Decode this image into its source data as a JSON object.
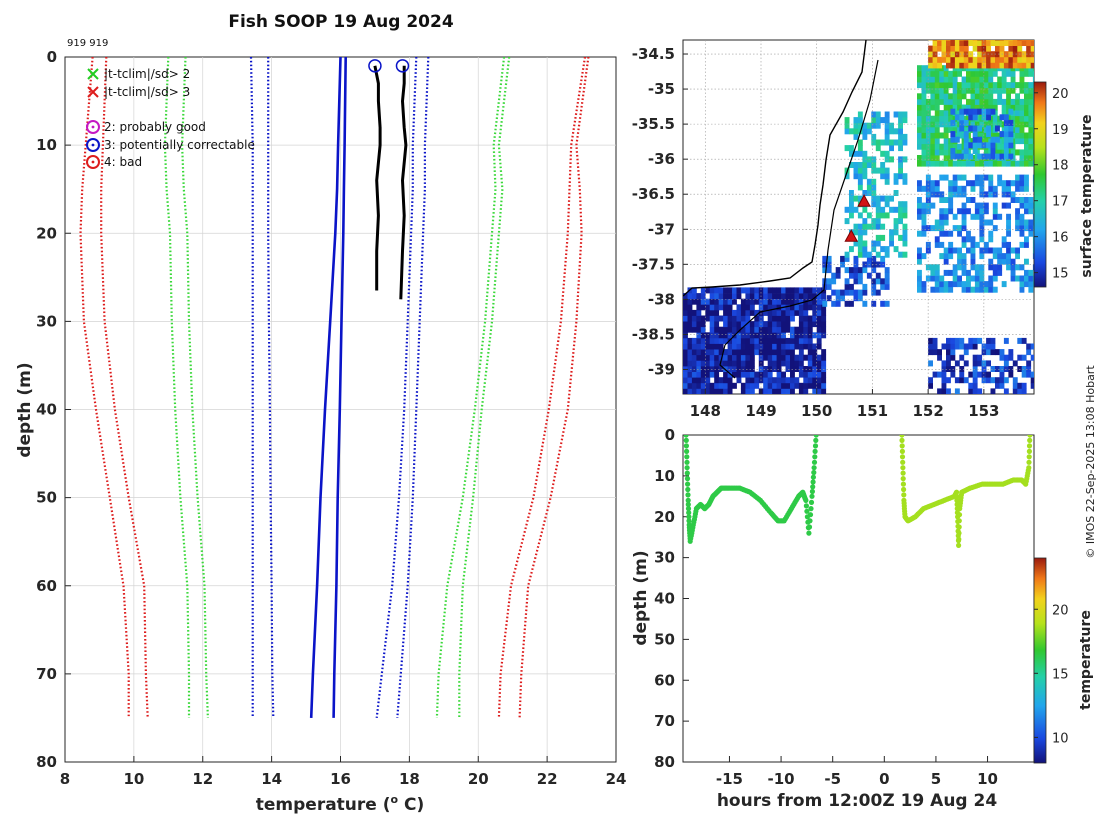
{
  "title": "Fish SOOP 19 Aug 2024",
  "ids_label": "919 919",
  "credit": "© IMOS 22-Sep-2025 13:08 Hobart",
  "colors": {
    "obs": "#000000",
    "clim": "#0a14c8",
    "sd2": "#3ad83a",
    "sd3": "#dd1c1c",
    "land_fill": "#ffffff",
    "marker": "#d21414",
    "qc_good": "#c419c4",
    "qc_corr": "#0a14c8",
    "qc_bad": "#dd1c1c"
  },
  "legend": [
    {
      "symbol": "x",
      "color": "#22cc22",
      "label": "|t-tclim|/sd> 2"
    },
    {
      "symbol": "x",
      "color": "#dd1c1c",
      "label": "|t-tclim|/sd> 3"
    },
    {
      "symbol": "o",
      "color": "#c419c4",
      "label": "2: probably good"
    },
    {
      "symbol": "o",
      "color": "#0a14c8",
      "label": "3: potentially correctable"
    },
    {
      "symbol": "o",
      "color": "#dd1c1c",
      "label": "4: bad"
    }
  ],
  "chart_data": [
    {
      "type": "line",
      "name": "profile",
      "xlabel": "temperature (o C)",
      "ylabel": "depth (m)",
      "xlim": [
        8,
        24
      ],
      "ylim": [
        80,
        0
      ],
      "y_reversed": true,
      "xticks": [
        8,
        10,
        12,
        14,
        16,
        18,
        20,
        22,
        24
      ],
      "yticks": [
        0,
        10,
        20,
        30,
        40,
        50,
        60,
        70,
        80
      ],
      "grid": true,
      "depths": [
        0,
        10,
        15,
        20,
        30,
        40,
        50,
        60,
        70,
        75
      ],
      "series": [
        {
          "name": "climatology 1",
          "style": "solid",
          "color": "#0a14c8",
          "values": [
            16.0,
            15.93,
            15.9,
            15.85,
            15.7,
            15.55,
            15.42,
            15.32,
            15.2,
            15.15
          ]
        },
        {
          "name": "climatology 2",
          "style": "solid",
          "color": "#0a14c8",
          "values": [
            16.15,
            16.12,
            16.1,
            16.08,
            16.03,
            15.98,
            15.92,
            15.88,
            15.82,
            15.8
          ]
        },
        {
          "name": "sd inner low",
          "style": "dotted",
          "color": "#0a14c8",
          "values": [
            13.4,
            13.45,
            13.45,
            13.45,
            13.45,
            13.45,
            13.45,
            13.45,
            13.45,
            13.45
          ]
        },
        {
          "name": "sd inner low 2",
          "style": "dotted",
          "color": "#0a14c8",
          "values": [
            13.9,
            13.9,
            13.9,
            13.9,
            13.92,
            13.95,
            13.97,
            14.0,
            14.02,
            14.05
          ]
        },
        {
          "name": "sd inner high",
          "style": "dotted",
          "color": "#0a14c8",
          "values": [
            18.2,
            18.1,
            18.1,
            18.05,
            17.95,
            17.85,
            17.7,
            17.5,
            17.2,
            17.05
          ]
        },
        {
          "name": "sd inner high 2",
          "style": "dotted",
          "color": "#0a14c8",
          "values": [
            18.55,
            18.45,
            18.45,
            18.4,
            18.3,
            18.2,
            18.1,
            17.95,
            17.75,
            17.65
          ]
        },
        {
          "name": "sd2 low",
          "style": "dotted",
          "color": "#3ad83a",
          "values": [
            11.0,
            10.9,
            10.95,
            11.05,
            11.1,
            11.2,
            11.35,
            11.55,
            11.6,
            11.6
          ]
        },
        {
          "name": "sd2 low 2",
          "style": "dotted",
          "color": "#3ad83a",
          "values": [
            11.5,
            11.4,
            11.45,
            11.55,
            11.6,
            11.7,
            11.85,
            12.05,
            12.1,
            12.15
          ]
        },
        {
          "name": "sd2 high",
          "style": "dotted",
          "color": "#3ad83a",
          "values": [
            20.75,
            20.45,
            20.5,
            20.4,
            20.2,
            19.9,
            19.55,
            19.1,
            18.85,
            18.8
          ]
        },
        {
          "name": "sd2 high 2",
          "style": "dotted",
          "color": "#3ad83a",
          "values": [
            20.9,
            20.6,
            20.7,
            20.6,
            20.4,
            20.1,
            19.85,
            19.55,
            19.45,
            19.45
          ]
        },
        {
          "name": "sd3 low",
          "style": "dotted",
          "color": "#dd1c1c",
          "values": [
            8.8,
            8.6,
            8.5,
            8.45,
            8.55,
            8.9,
            9.3,
            9.7,
            9.85,
            9.85
          ]
        },
        {
          "name": "sd3 low 2",
          "style": "dotted",
          "color": "#dd1c1c",
          "values": [
            9.2,
            9.1,
            9.05,
            9.05,
            9.15,
            9.45,
            9.85,
            10.3,
            10.35,
            10.4
          ]
        },
        {
          "name": "sd3 high",
          "style": "dotted",
          "color": "#dd1c1c",
          "values": [
            23.1,
            22.7,
            22.65,
            22.6,
            22.4,
            22.05,
            21.6,
            20.95,
            20.65,
            20.6
          ]
        },
        {
          "name": "sd3 high 2",
          "style": "dotted",
          "color": "#dd1c1c",
          "values": [
            23.2,
            22.85,
            22.95,
            23.0,
            22.85,
            22.6,
            22.1,
            21.45,
            21.25,
            21.2
          ]
        }
      ],
      "profiles": [
        {
          "name": "profile A",
          "depths": [
            1,
            3,
            5,
            8,
            10,
            14,
            18,
            22,
            26.5
          ],
          "values": [
            17.0,
            17.1,
            17.1,
            17.15,
            17.15,
            17.05,
            17.1,
            17.05,
            17.05
          ]
        },
        {
          "name": "profile B",
          "depths": [
            1,
            3,
            5,
            8,
            10,
            14,
            18,
            22,
            27.5
          ],
          "values": [
            17.85,
            17.85,
            17.8,
            17.85,
            17.9,
            17.8,
            17.85,
            17.8,
            17.75
          ]
        }
      ],
      "qc_circles": [
        {
          "x": 17.0,
          "y": 1,
          "color": "#0a14c8"
        },
        {
          "x": 17.8,
          "y": 1,
          "color": "#0a14c8"
        }
      ]
    },
    {
      "type": "heatmap",
      "name": "sst_map",
      "xlim": [
        147.6,
        153.9
      ],
      "ylim": [
        -39.35,
        -34.3
      ],
      "xticks": [
        148,
        149,
        150,
        151,
        152,
        153
      ],
      "yticks": [
        -34.5,
        -35,
        -35.5,
        -36,
        -36.5,
        -37,
        -37.5,
        -38,
        -38.5,
        -39
      ],
      "colorbar_label": "surface temperature",
      "colorbar_range": [
        14.6,
        20.3
      ],
      "colorbar_ticks": [
        15,
        16,
        17,
        18,
        19,
        20
      ],
      "markers": [
        {
          "lon": 150.85,
          "lat": -36.6
        },
        {
          "lon": 150.62,
          "lat": -37.1
        }
      ],
      "field_regions": [
        {
          "lon": [
            147.6,
            150.1
          ],
          "lat": [
            -39.35,
            -37.85
          ],
          "value": 14.8
        },
        {
          "lon": [
            150.1,
            151.3
          ],
          "lat": [
            -38.1,
            -37.4
          ],
          "value": 15.4
        },
        {
          "lon": [
            150.5,
            151.6
          ],
          "lat": [
            -37.4,
            -35.4
          ],
          "value": 16.6
        },
        {
          "lon": [
            151.8,
            153.9
          ],
          "lat": [
            -36.1,
            -34.7
          ],
          "value": 17.2
        },
        {
          "lon": [
            152.4,
            153.5
          ],
          "lat": [
            -36.0,
            -35.3
          ],
          "value": 15.8
        },
        {
          "lon": [
            152.0,
            153.9
          ],
          "lat": [
            -34.7,
            -34.3
          ],
          "value": 19.6
        },
        {
          "lon": [
            151.8,
            153.9
          ],
          "lat": [
            -37.9,
            -36.3
          ],
          "value": 15.9
        },
        {
          "lon": [
            152.0,
            153.9
          ],
          "lat": [
            -39.35,
            -38.6
          ],
          "value": 15.2
        }
      ]
    },
    {
      "type": "scatter",
      "name": "depth_time",
      "xlabel": "hours from 12:00Z 19 Aug 24",
      "ylabel": "depth (m)",
      "xlim": [
        -19.5,
        14.5
      ],
      "ylim": [
        80,
        0
      ],
      "y_reversed": true,
      "xticks": [
        -15,
        -10,
        -5,
        0,
        5,
        10
      ],
      "yticks": [
        0,
        10,
        20,
        30,
        40,
        50,
        60,
        70,
        80
      ],
      "colorbar_label": "temperature",
      "colorbar_range": [
        8,
        24
      ],
      "colorbar_ticks": [
        10,
        15,
        20
      ],
      "segments": [
        {
          "temp": 16.4,
          "points": [
            [
              -19.2,
              0
            ],
            [
              -19.1,
              8
            ],
            [
              -19.0,
              16
            ],
            [
              -18.9,
              22
            ],
            [
              -18.8,
              26
            ],
            [
              -18.5,
              22
            ],
            [
              -18.2,
              18
            ],
            [
              -17.8,
              17
            ],
            [
              -17.4,
              18
            ],
            [
              -17.0,
              17
            ],
            [
              -16.6,
              15
            ],
            [
              -16.2,
              14
            ],
            [
              -15.8,
              13
            ],
            [
              -15.0,
              13
            ],
            [
              -14.0,
              13
            ],
            [
              -13.0,
              14
            ],
            [
              -12.0,
              16
            ],
            [
              -11.0,
              19
            ],
            [
              -10.3,
              21
            ],
            [
              -9.7,
              21
            ],
            [
              -9.0,
              18
            ],
            [
              -8.3,
              15
            ],
            [
              -7.9,
              14
            ],
            [
              -7.6,
              16
            ],
            [
              -7.3,
              24
            ],
            [
              -7.0,
              15
            ],
            [
              -6.8,
              8
            ],
            [
              -6.6,
              0
            ]
          ]
        },
        {
          "temp": 18.6,
          "points": [
            [
              1.7,
              0
            ],
            [
              1.8,
              8
            ],
            [
              1.9,
              16
            ],
            [
              2.0,
              20
            ],
            [
              2.3,
              21
            ],
            [
              3.0,
              20
            ],
            [
              3.8,
              18
            ],
            [
              4.8,
              17
            ],
            [
              5.8,
              16
            ],
            [
              6.8,
              15
            ],
            [
              7.0,
              14
            ],
            [
              7.1,
              20
            ],
            [
              7.2,
              27
            ],
            [
              7.3,
              18
            ],
            [
              7.5,
              14
            ],
            [
              8.3,
              13
            ],
            [
              9.5,
              12
            ],
            [
              10.5,
              12
            ],
            [
              11.5,
              12
            ],
            [
              12.5,
              11
            ],
            [
              13.3,
              11
            ],
            [
              13.7,
              12
            ],
            [
              14.0,
              8
            ],
            [
              14.1,
              0
            ]
          ]
        }
      ]
    }
  ]
}
